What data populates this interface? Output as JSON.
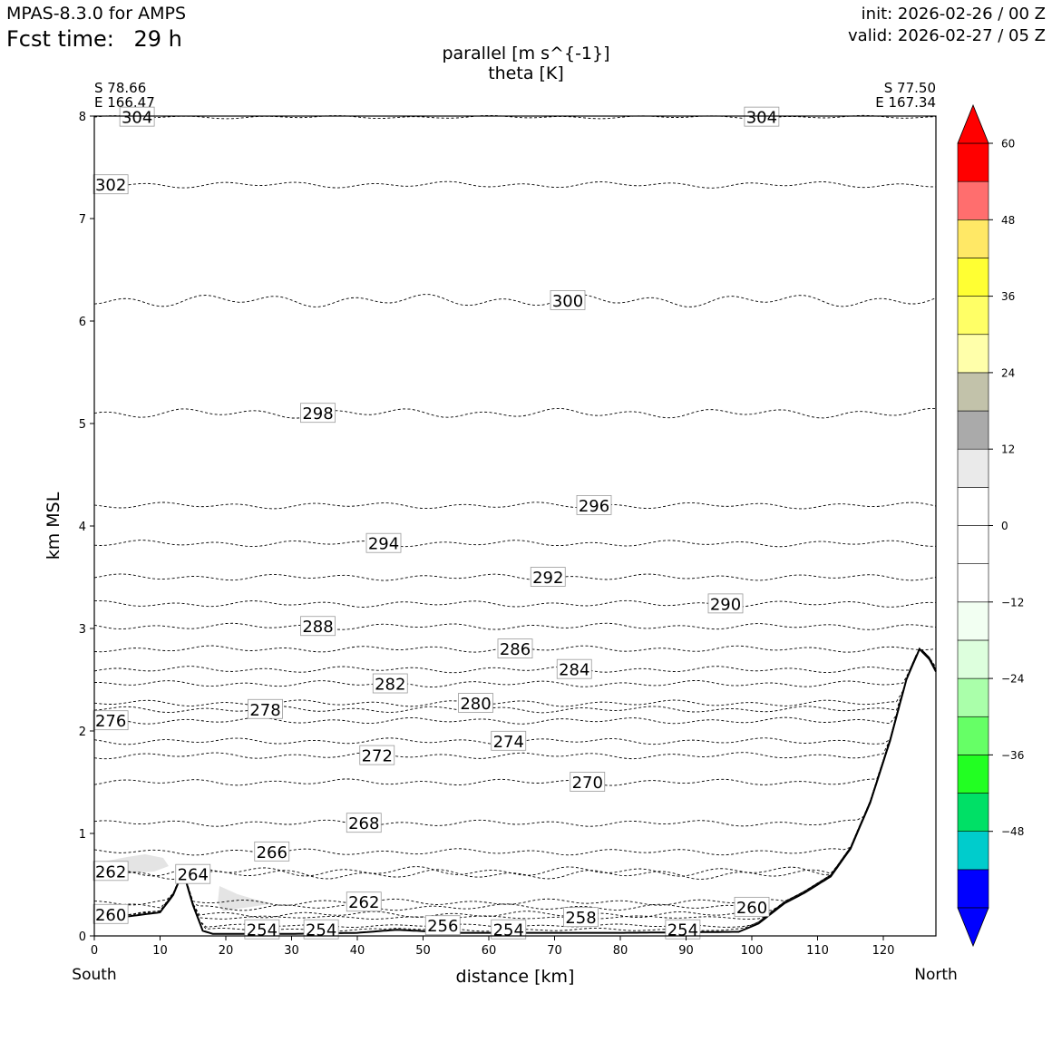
{
  "header": {
    "model": "MPAS-8.3.0 for AMPS",
    "fcst_prefix": "Fcst time:",
    "fcst_value": "29 h",
    "init": "init: 2026-02-26 / 00 Z",
    "valid": "valid: 2026-02-27 / 05 Z",
    "title_line1": "parallel [m s^{-1}]",
    "title_line2": "theta [K]"
  },
  "endpoints": {
    "left_lat": "S 78.66",
    "left_lon": "E 166.47",
    "right_lat": "S 77.50",
    "right_lon": "E 167.34",
    "left_dir": "South",
    "right_dir": "North"
  },
  "chart_data": {
    "type": "cross-section contour",
    "title": "parallel [m s^{-1}] / theta [K]",
    "xlabel": "distance [km]",
    "ylabel": "km MSL",
    "xlim": [
      0,
      128
    ],
    "ylim": [
      0,
      8
    ],
    "xticks": [
      0,
      10,
      20,
      30,
      40,
      50,
      60,
      70,
      80,
      90,
      100,
      110,
      120
    ],
    "yticks": [
      0,
      1,
      2,
      3,
      4,
      5,
      6,
      7,
      8
    ],
    "terrain": {
      "x": [
        0,
        5,
        10,
        12,
        13.5,
        15,
        16.5,
        18,
        20,
        30,
        40,
        46,
        55,
        80,
        98,
        101,
        105,
        108,
        112,
        115,
        118,
        121,
        123.5,
        125.5,
        127,
        128
      ],
      "z": [
        0.16,
        0.19,
        0.23,
        0.4,
        0.63,
        0.3,
        0.05,
        0.02,
        0.02,
        0.02,
        0.03,
        0.06,
        0.03,
        0.03,
        0.04,
        0.12,
        0.32,
        0.42,
        0.58,
        0.85,
        1.3,
        1.9,
        2.5,
        2.8,
        2.7,
        2.58
      ]
    },
    "theta_contours": [
      {
        "label": "304",
        "z": 7.99,
        "label_x": 6.5,
        "wobble": 0.01
      },
      {
        "label": "304",
        "z": 7.99,
        "label_x": 101.5,
        "wobble": 0.01
      },
      {
        "label": "302",
        "z": 7.33,
        "label_x": 2.5,
        "wobble": 0.02
      },
      {
        "label": "300",
        "z": 6.2,
        "label_x": 72,
        "wobble": 0.04
      },
      {
        "label": "298",
        "z": 5.1,
        "label_x": 34,
        "wobble": 0.03
      },
      {
        "label": "296",
        "z": 4.2,
        "label_x": 76,
        "wobble": 0.02
      },
      {
        "label": "294",
        "z": 3.83,
        "label_x": 44,
        "wobble": 0.02
      },
      {
        "label": "292",
        "z": 3.5,
        "label_x": 69,
        "wobble": 0.02
      },
      {
        "label": "290",
        "z": 3.24,
        "label_x": 96,
        "wobble": 0.02
      },
      {
        "label": "288",
        "z": 3.02,
        "label_x": 34,
        "wobble": 0.02
      },
      {
        "label": "286",
        "z": 2.8,
        "label_x": 64,
        "wobble": 0.02
      },
      {
        "label": "284",
        "z": 2.6,
        "label_x": 73,
        "wobble": 0.02
      },
      {
        "label": "282",
        "z": 2.46,
        "label_x": 45,
        "wobble": 0.02
      },
      {
        "label": "280",
        "z": 2.27,
        "label_x": 58,
        "wobble": 0.02
      },
      {
        "label": "278",
        "z": 2.21,
        "label_x": 26,
        "wobble": 0.02
      },
      {
        "label": "276",
        "z": 2.1,
        "label_x": 2.5,
        "wobble": 0.02
      },
      {
        "label": "274",
        "z": 1.9,
        "label_x": 63,
        "wobble": 0.02
      },
      {
        "label": "272",
        "z": 1.76,
        "label_x": 43,
        "wobble": 0.02
      },
      {
        "label": "270",
        "z": 1.5,
        "label_x": 75,
        "wobble": 0.02
      },
      {
        "label": "268",
        "z": 1.1,
        "label_x": 41,
        "wobble": 0.02
      },
      {
        "label": "266",
        "z": 0.82,
        "label_x": 27,
        "wobble": 0.02
      },
      {
        "label": "264",
        "z": 0.6,
        "label_x": 15,
        "wobble": 0.03
      },
      {
        "label": "262",
        "z": 0.63,
        "label_x": 2.5,
        "wobble": 0.03
      },
      {
        "label": "262",
        "z": 0.33,
        "label_x": 41,
        "wobble": 0.02
      },
      {
        "label": "260",
        "z": 0.21,
        "label_x": 2.5,
        "wobble": 0.02
      },
      {
        "label": "260",
        "z": 0.28,
        "label_x": 100,
        "wobble": 0.02
      },
      {
        "label": "258",
        "z": 0.18,
        "label_x": 74,
        "wobble": 0.01
      },
      {
        "label": "256",
        "z": 0.1,
        "label_x": 53,
        "wobble": 0.01
      },
      {
        "label": "254",
        "z": 0.06,
        "label_x": 25.5,
        "wobble": 0.01
      },
      {
        "label": "254",
        "z": 0.06,
        "label_x": 34.5,
        "wobble": 0.01
      },
      {
        "label": "254",
        "z": 0.06,
        "label_x": 63,
        "wobble": 0.01
      },
      {
        "label": "254",
        "z": 0.06,
        "label_x": 89.5,
        "wobble": 0.01
      }
    ],
    "colorbar": {
      "ticks": [
        "60",
        "48",
        "36",
        "24",
        "12",
        "0",
        "−12",
        "−24",
        "−36",
        "−48"
      ],
      "tick_values": [
        60,
        48,
        36,
        24,
        12,
        0,
        -12,
        -24,
        -36,
        -48
      ],
      "levels": [
        -60,
        -54,
        -48,
        -42,
        -36,
        -30,
        -24,
        -18,
        -12,
        -6,
        0,
        6,
        12,
        18,
        24,
        30,
        36,
        42,
        48,
        54,
        60
      ],
      "colors": [
        "#0000ff",
        "#00cccc",
        "#00e066",
        "#22ff22",
        "#66ff66",
        "#aaffaa",
        "#ddffdd",
        "#f2fff2",
        "#ffffff",
        "#ffffff",
        "#ffffff",
        "#eaeaea",
        "#aaaaaa",
        "#c2c2aa",
        "#ffffaa",
        "#ffff66",
        "#ffff33",
        "#ffe866",
        "#ff6e6e",
        "#ff0000"
      ],
      "over_color": "#ff0000",
      "under_color": "#0000ff"
    }
  }
}
